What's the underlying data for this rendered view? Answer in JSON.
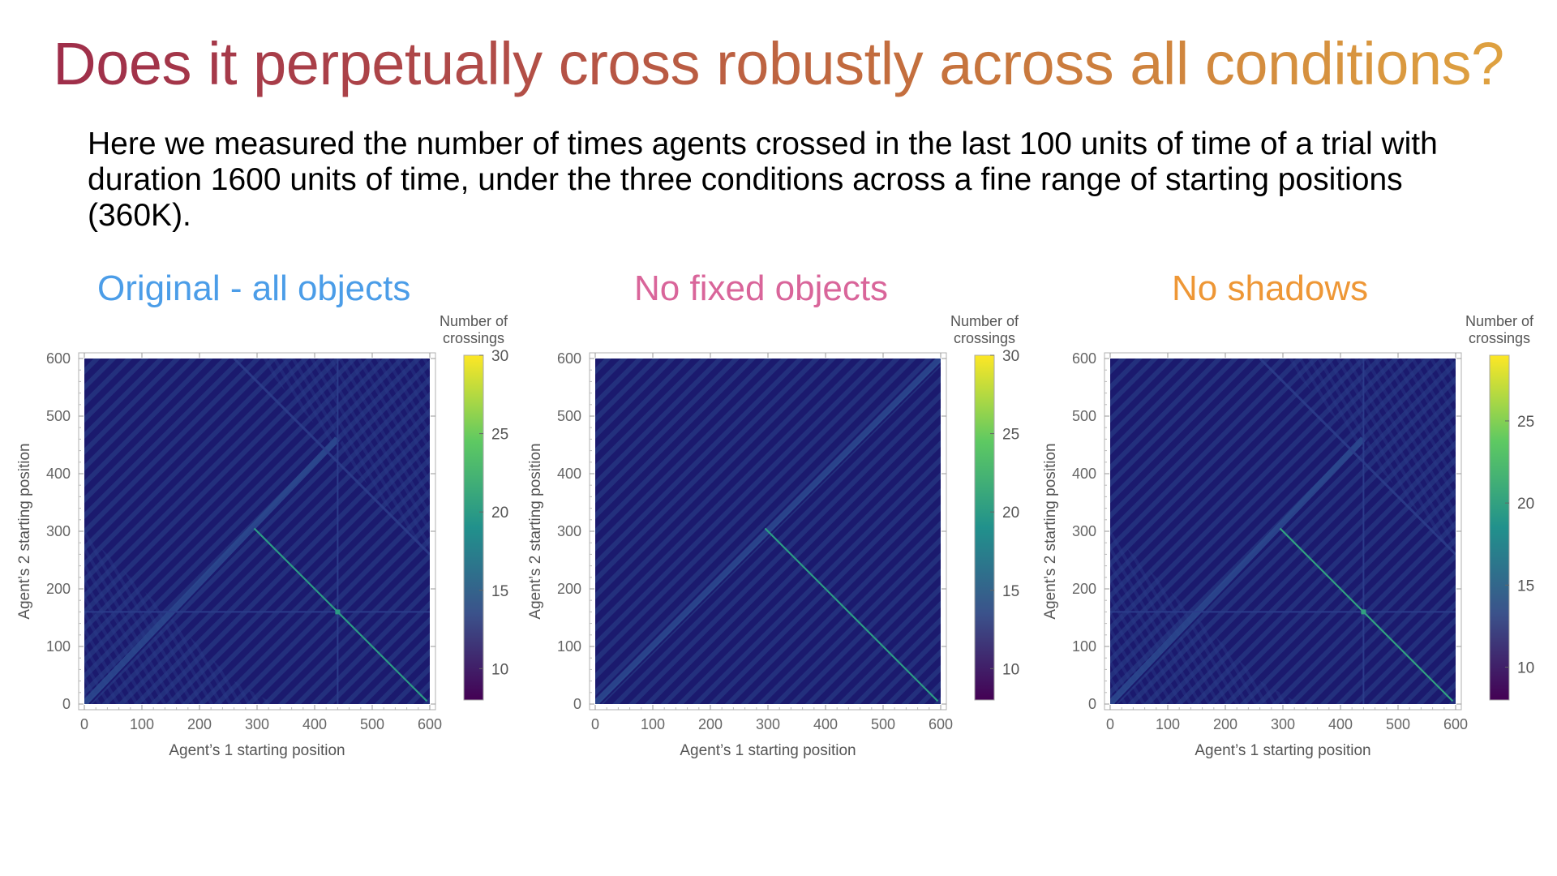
{
  "slide": {
    "title": "Does it perpetually cross robustly across all conditions?",
    "intro": "Here we measured the number of times agents crossed in the last 100 units of time of a trial with duration 1600 units of time, under the three conditions across a fine range of starting positions (360K)."
  },
  "colors": {
    "heat_low": "#1b1a6e",
    "heat_stripe": "#23307d",
    "diag_line": "#3f9a8a",
    "title_1": "#4b9de8",
    "title_2": "#d9659a",
    "title_3": "#ee9736"
  },
  "chart_data": [
    {
      "type": "heatmap",
      "title": "Original - all objects",
      "xlabel": "Agent’s 1 starting position",
      "ylabel": "Agent’s 2 starting position",
      "xlim": [
        0,
        600
      ],
      "ylim": [
        0,
        600
      ],
      "xticks": [
        "0",
        "100",
        "200",
        "300",
        "400",
        "500",
        "600"
      ],
      "yticks": [
        "0",
        "100",
        "200",
        "300",
        "400",
        "500",
        "600"
      ],
      "colorbar": {
        "title_line1": "Number of",
        "title_line2": "crossings",
        "range": [
          8,
          30
        ],
        "ticks": [
          "10",
          "15",
          "20",
          "25",
          "30"
        ]
      },
      "features": {
        "bright_line": {
          "from": [
            295,
            305
          ],
          "to": [
            595,
            5
          ],
          "value": 20
        },
        "diagonal_band": {
          "from": [
            0,
            0
          ],
          "to": [
            440,
            460
          ]
        },
        "anti_diagonal": {
          "from": [
            260,
            600
          ],
          "to": [
            600,
            260
          ]
        },
        "horizontal_y": 160,
        "vertical_x": 440
      }
    },
    {
      "type": "heatmap",
      "title": "No fixed objects",
      "xlabel": "Agent’s 1 starting position",
      "ylabel": "Agent’s 2 starting position",
      "xlim": [
        0,
        600
      ],
      "ylim": [
        0,
        600
      ],
      "xticks": [
        "0",
        "100",
        "200",
        "300",
        "400",
        "500",
        "600"
      ],
      "yticks": [
        "0",
        "100",
        "200",
        "300",
        "400",
        "500",
        "600"
      ],
      "colorbar": {
        "title_line1": "Number of",
        "title_line2": "crossings",
        "range": [
          8,
          30
        ],
        "ticks": [
          "10",
          "15",
          "20",
          "25",
          "30"
        ]
      },
      "features": {
        "bright_line": {
          "from": [
            295,
            305
          ],
          "to": [
            595,
            5
          ],
          "value": 20
        },
        "diagonal_band": {
          "from": [
            0,
            0
          ],
          "to": [
            600,
            600
          ]
        }
      }
    },
    {
      "type": "heatmap",
      "title": "No shadows",
      "xlabel": "Agent’s 1 starting position",
      "ylabel": "Agent’s 2 starting position",
      "xlim": [
        0,
        600
      ],
      "ylim": [
        0,
        600
      ],
      "xticks": [
        "0",
        "100",
        "200",
        "300",
        "400",
        "500",
        "600"
      ],
      "yticks": [
        "0",
        "100",
        "200",
        "300",
        "400",
        "500",
        "600"
      ],
      "colorbar": {
        "title_line1": "Number of",
        "title_line2": "crossings",
        "range": [
          8,
          29
        ],
        "ticks": [
          "10",
          "15",
          "20",
          "25"
        ]
      },
      "features": {
        "bright_line": {
          "from": [
            295,
            305
          ],
          "to": [
            595,
            5
          ],
          "value": 20
        },
        "diagonal_band": {
          "from": [
            0,
            0
          ],
          "to": [
            440,
            460
          ]
        },
        "anti_diagonal": {
          "from": [
            260,
            600
          ],
          "to": [
            600,
            260
          ]
        },
        "horizontal_y": 160,
        "vertical_x": 440
      }
    }
  ]
}
